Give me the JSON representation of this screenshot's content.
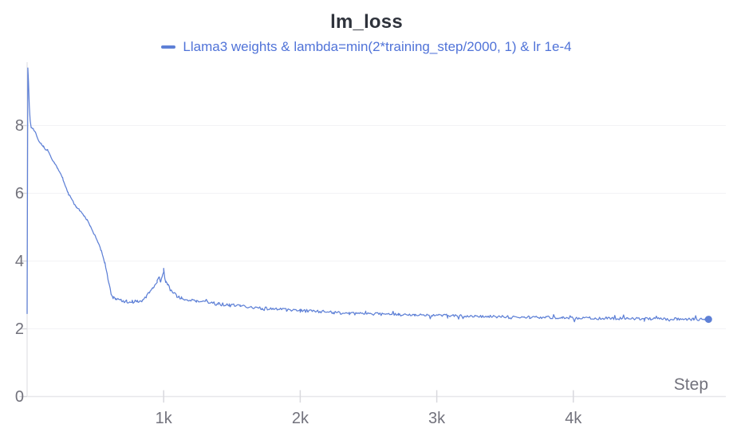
{
  "theme": {
    "background": "#ffffff",
    "title_color": "#2f333c",
    "tick_label_color": "#72727c",
    "grid_color": "#f3f3f5",
    "axis_color": "#e7e7ea",
    "tick_color": "#d9d9de"
  },
  "chart_data": {
    "type": "line",
    "title": "lm_loss",
    "xlabel": "Step",
    "ylabel": "",
    "xlim": [
      0,
      5115
    ],
    "ylim": [
      0,
      9.87
    ],
    "grid": "horizontal-only",
    "legend_position": "top-center",
    "x_ticks": [
      {
        "value": 1000,
        "label": "1k"
      },
      {
        "value": 2000,
        "label": "2k"
      },
      {
        "value": 3000,
        "label": "3k"
      },
      {
        "value": 4000,
        "label": "4k"
      }
    ],
    "y_ticks": [
      {
        "value": 0,
        "label": "0"
      },
      {
        "value": 2,
        "label": "2"
      },
      {
        "value": 4,
        "label": "4"
      },
      {
        "value": 6,
        "label": "6"
      },
      {
        "value": 8,
        "label": "8"
      }
    ],
    "series": [
      {
        "name": "Llama3 weights & lambda=min(2*training_step/2000, 1) & lr 1e-4",
        "color": "#5e80d6",
        "legend_text_color": "#5073d8",
        "end_marker": true,
        "points": [
          [
            0,
            2.45
          ],
          [
            5,
            9.7
          ],
          [
            10,
            9.3
          ],
          [
            16,
            8.6
          ],
          [
            22,
            8.15
          ],
          [
            30,
            7.95
          ],
          [
            45,
            7.9
          ],
          [
            60,
            7.82
          ],
          [
            75,
            7.65
          ],
          [
            90,
            7.52
          ],
          [
            105,
            7.45
          ],
          [
            120,
            7.38
          ],
          [
            135,
            7.3
          ],
          [
            150,
            7.28
          ],
          [
            165,
            7.15
          ],
          [
            180,
            7.02
          ],
          [
            200,
            6.9
          ],
          [
            220,
            6.75
          ],
          [
            240,
            6.62
          ],
          [
            260,
            6.45
          ],
          [
            280,
            6.2
          ],
          [
            300,
            6.02
          ],
          [
            320,
            5.88
          ],
          [
            340,
            5.72
          ],
          [
            360,
            5.6
          ],
          [
            380,
            5.52
          ],
          [
            400,
            5.42
          ],
          [
            420,
            5.32
          ],
          [
            440,
            5.2
          ],
          [
            460,
            5.05
          ],
          [
            480,
            4.88
          ],
          [
            500,
            4.72
          ],
          [
            520,
            4.55
          ],
          [
            540,
            4.32
          ],
          [
            555,
            4.15
          ],
          [
            570,
            3.95
          ],
          [
            585,
            3.65
          ],
          [
            600,
            3.3
          ],
          [
            615,
            3.05
          ],
          [
            630,
            2.92
          ],
          [
            650,
            2.86
          ],
          [
            690,
            2.83
          ],
          [
            730,
            2.8
          ],
          [
            770,
            2.79
          ],
          [
            810,
            2.81
          ],
          [
            845,
            2.86
          ],
          [
            875,
            2.95
          ],
          [
            900,
            3.08
          ],
          [
            920,
            3.22
          ],
          [
            938,
            3.3
          ],
          [
            952,
            3.38
          ],
          [
            966,
            3.52
          ],
          [
            978,
            3.42
          ],
          [
            990,
            3.55
          ],
          [
            1000,
            3.68
          ],
          [
            1007,
            3.52
          ],
          [
            1015,
            3.42
          ],
          [
            1030,
            3.3
          ],
          [
            1048,
            3.17
          ],
          [
            1070,
            3.05
          ],
          [
            1095,
            2.97
          ],
          [
            1130,
            2.9
          ],
          [
            1180,
            2.87
          ],
          [
            1240,
            2.82
          ],
          [
            1320,
            2.78
          ],
          [
            1400,
            2.73
          ],
          [
            1480,
            2.7
          ],
          [
            1560,
            2.67
          ],
          [
            1640,
            2.64
          ],
          [
            1720,
            2.61
          ],
          [
            1800,
            2.59
          ],
          [
            1900,
            2.56
          ],
          [
            2000,
            2.53
          ],
          [
            2120,
            2.51
          ],
          [
            2240,
            2.49
          ],
          [
            2360,
            2.46
          ],
          [
            2480,
            2.45
          ],
          [
            2600,
            2.43
          ],
          [
            2720,
            2.42
          ],
          [
            2840,
            2.41
          ],
          [
            2960,
            2.4
          ],
          [
            3080,
            2.39
          ],
          [
            3200,
            2.38
          ],
          [
            3320,
            2.37
          ],
          [
            3440,
            2.36
          ],
          [
            3560,
            2.35
          ],
          [
            3680,
            2.34
          ],
          [
            3800,
            2.34
          ],
          [
            3920,
            2.33
          ],
          [
            4040,
            2.32
          ],
          [
            4160,
            2.31
          ],
          [
            4280,
            2.31
          ],
          [
            4400,
            2.3
          ],
          [
            4520,
            2.3
          ],
          [
            4640,
            2.29
          ],
          [
            4760,
            2.29
          ],
          [
            4880,
            2.28
          ],
          [
            4990,
            2.28
          ]
        ],
        "noise": {
          "sample_step": 8,
          "seed": 13,
          "spike_chance": 0.055,
          "spike_factor": 3.0,
          "segments": [
            {
              "until": 560,
              "amp": 0.02
            },
            {
              "until": 660,
              "amp": 0.04
            },
            {
              "until": 1120,
              "amp": 0.055
            },
            {
              "until": 2400,
              "amp": 0.05
            },
            {
              "until": 5115,
              "amp": 0.04
            }
          ]
        }
      }
    ]
  }
}
